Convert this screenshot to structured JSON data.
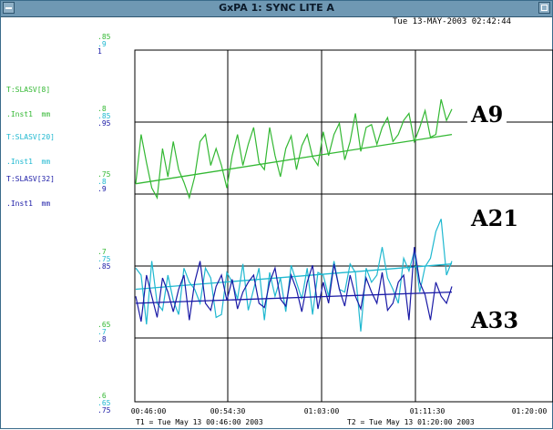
{
  "window": {
    "title": "GxPA 1: SYNC LITE A"
  },
  "timestamp": "Tue 13-MAY-2003 02:42:44",
  "signals": [
    {
      "name": "T:SLASV[8]",
      "unit": ".Inst1  mm",
      "color": "#33b833"
    },
    {
      "name": "T:SLASV[20]",
      "unit": ".Inst1  mm",
      "color": "#1fb8d0"
    },
    {
      "name": "T:SLASV[32]",
      "unit": ".Inst1  mm",
      "color": "#1a1aa6"
    }
  ],
  "y_tick_groups": [
    [
      ".85",
      ".9",
      "1"
    ],
    [
      ".8",
      ".85",
      ".95"
    ],
    [
      ".75",
      ".8",
      ".9"
    ],
    [
      ".7",
      ".75",
      ".85"
    ],
    [
      ".65",
      ".7",
      ".8"
    ],
    [
      ".6",
      ".65",
      ".75"
    ]
  ],
  "x_ticks": [
    "00:46:00",
    "00:54:30",
    "01:03:00",
    "01:11:30",
    "01:20:00"
  ],
  "footer": {
    "t1": "T1 = Tue May 13 00:46:00 2003",
    "t2": "T2 = Tue May 13 01:20:00 2003"
  },
  "annotations": [
    {
      "text": "A9",
      "color": "#2e8b2e"
    },
    {
      "text": "A21",
      "color": "#3a6fd6"
    },
    {
      "text": "A33",
      "color": "#1a1a66"
    }
  ],
  "chart_data": {
    "type": "line",
    "x_range": [
      "00:46:00",
      "01:20:00"
    ],
    "grid": true,
    "legend": "left",
    "series": [
      {
        "name": "T:SLASV[8]",
        "color": "#33b833",
        "y_range": [
          0.6,
          0.85
        ],
        "values": [
          0.755,
          0.79,
          0.77,
          0.752,
          0.745,
          0.78,
          0.76,
          0.785,
          0.765,
          0.756,
          0.745,
          0.76,
          0.785,
          0.79,
          0.768,
          0.78,
          0.768,
          0.752,
          0.775,
          0.79,
          0.768,
          0.783,
          0.795,
          0.77,
          0.765,
          0.795,
          0.775,
          0.76,
          0.78,
          0.789,
          0.765,
          0.782,
          0.79,
          0.774,
          0.768,
          0.792,
          0.775,
          0.79,
          0.798,
          0.772,
          0.785,
          0.805,
          0.778,
          0.795,
          0.797,
          0.783,
          0.795,
          0.802,
          0.785,
          0.79,
          0.8,
          0.805,
          0.785,
          0.795,
          0.807,
          0.788,
          0.79,
          0.815,
          0.8,
          0.808
        ],
        "trend": [
          0.755,
          0.79
        ]
      },
      {
        "name": "T:SLASV[20]",
        "color": "#1fb8d0",
        "y_range": [
          0.65,
          0.9
        ],
        "values": [
          0.745,
          0.74,
          0.705,
          0.75,
          0.72,
          0.715,
          0.74,
          0.722,
          0.712,
          0.745,
          0.735,
          0.73,
          0.72,
          0.745,
          0.738,
          0.71,
          0.712,
          0.742,
          0.735,
          0.723,
          0.748,
          0.715,
          0.73,
          0.745,
          0.708,
          0.742,
          0.725,
          0.738,
          0.714,
          0.747,
          0.735,
          0.723,
          0.745,
          0.712,
          0.742,
          0.74,
          0.725,
          0.75,
          0.73,
          0.728,
          0.748,
          0.742,
          0.7,
          0.745,
          0.735,
          0.74,
          0.76,
          0.738,
          0.73,
          0.72,
          0.752,
          0.743,
          0.757,
          0.728,
          0.746,
          0.752,
          0.771,
          0.78,
          0.74,
          0.75
        ],
        "trend": [
          0.73,
          0.748
        ]
      },
      {
        "name": "T:SLASV[32]",
        "color": "#1a1aa6",
        "y_range": [
          0.7,
          0.95
        ],
        "values": [
          0.775,
          0.757,
          0.79,
          0.775,
          0.76,
          0.788,
          0.778,
          0.764,
          0.78,
          0.79,
          0.758,
          0.785,
          0.8,
          0.77,
          0.765,
          0.782,
          0.79,
          0.772,
          0.787,
          0.766,
          0.778,
          0.785,
          0.79,
          0.77,
          0.767,
          0.785,
          0.795,
          0.773,
          0.768,
          0.79,
          0.78,
          0.764,
          0.785,
          0.797,
          0.766,
          0.785,
          0.77,
          0.798,
          0.78,
          0.768,
          0.79,
          0.775,
          0.766,
          0.788,
          0.778,
          0.77,
          0.792,
          0.765,
          0.77,
          0.785,
          0.79,
          0.758,
          0.81,
          0.785,
          0.776,
          0.758,
          0.785,
          0.775,
          0.77,
          0.782
        ],
        "trend": [
          0.77,
          0.778
        ]
      }
    ]
  }
}
